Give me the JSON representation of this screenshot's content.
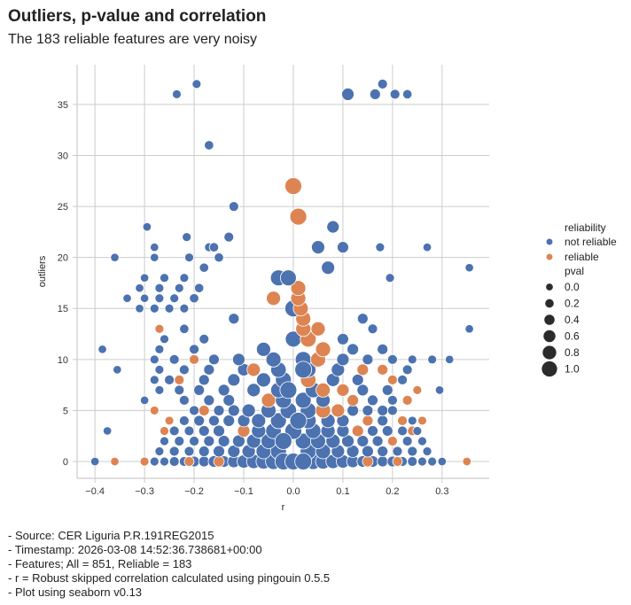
{
  "title": "Outliers, p-value and correlation",
  "subtitle": "The 183 reliable features are very noisy",
  "footer": [
    "- Source: CER Liguria P.R.191REG2015",
    "- Timestamp: 2026-03-08 14:52:36.738681+00:00",
    "- Features; All = 851, Reliable = 183",
    "- r = Robust skipped correlation calculated using pingouin 0.5.5",
    "- Plot using seaborn v0.13"
  ],
  "chart_data": {
    "type": "scatter",
    "xlabel": "r",
    "ylabel": "outliers",
    "xlim": [
      -0.436,
      0.395
    ],
    "ylim": [
      -1.65,
      38.9
    ],
    "xticks": [
      -0.4,
      -0.3,
      -0.2,
      -0.1,
      0.0,
      0.1,
      0.2,
      0.3
    ],
    "xtick_labels": [
      "−0.4",
      "−0.3",
      "−0.2",
      "−0.1",
      "0.0",
      "0.1",
      "0.2",
      "0.3"
    ],
    "yticks": [
      0,
      5,
      10,
      15,
      20,
      25,
      30,
      35
    ],
    "ytick_labels": [
      "0",
      "5",
      "10",
      "15",
      "20",
      "25",
      "30",
      "35"
    ],
    "grid": true,
    "legend": {
      "placement": "right",
      "hue_title": "reliability",
      "hue_entries": [
        {
          "label": "not reliable",
          "color": "#4c72b0"
        },
        {
          "label": "reliable",
          "color": "#dd8452"
        }
      ],
      "size_title": "pval",
      "size_entries": [
        {
          "label": "0.0",
          "value": 0
        },
        {
          "label": "0.2",
          "value": 0.2
        },
        {
          "label": "0.4",
          "value": 0.4
        },
        {
          "label": "0.6",
          "value": 0.6
        },
        {
          "label": "0.8",
          "value": 0.8
        },
        {
          "label": "1.0",
          "value": 1.0
        }
      ]
    },
    "point_fields": [
      "r",
      "outliers",
      "pval",
      "reliable"
    ],
    "points": [
      [
        -0.28,
        0,
        0.1,
        0
      ],
      [
        -0.26,
        0,
        0.1,
        0
      ],
      [
        -0.24,
        0,
        0.2,
        0
      ],
      [
        -0.22,
        0,
        0.2,
        0
      ],
      [
        -0.2,
        0,
        0.3,
        0
      ],
      [
        -0.18,
        0,
        0.3,
        0
      ],
      [
        -0.16,
        0,
        0.4,
        0
      ],
      [
        -0.14,
        0,
        0.4,
        0
      ],
      [
        -0.12,
        0,
        0.5,
        0
      ],
      [
        -0.1,
        0,
        0.6,
        0
      ],
      [
        -0.08,
        0,
        0.7,
        0
      ],
      [
        -0.06,
        0,
        0.8,
        0
      ],
      [
        -0.04,
        0,
        0.9,
        0
      ],
      [
        -0.02,
        0,
        0.95,
        0
      ],
      [
        0.02,
        0,
        0.95,
        0
      ],
      [
        0.04,
        0,
        0.9,
        0
      ],
      [
        0.06,
        0,
        0.8,
        0
      ],
      [
        0.08,
        0,
        0.7,
        0
      ],
      [
        0.1,
        0,
        0.6,
        0
      ],
      [
        0.12,
        0,
        0.5,
        0
      ],
      [
        0.14,
        0,
        0.4,
        0
      ],
      [
        0.16,
        0,
        0.4,
        0
      ],
      [
        0.18,
        0,
        0.3,
        0
      ],
      [
        0.2,
        0,
        0.3,
        0
      ],
      [
        0.22,
        0,
        0.2,
        0
      ],
      [
        0.24,
        0,
        0.2,
        0
      ],
      [
        0.26,
        0,
        0.1,
        0
      ],
      [
        0.28,
        0,
        0.1,
        0
      ],
      [
        0.3,
        0,
        0.05,
        0
      ],
      [
        -0.4,
        0,
        0.05,
        0
      ],
      [
        -0.36,
        0,
        0.05,
        1
      ],
      [
        -0.3,
        0,
        0.1,
        1
      ],
      [
        -0.21,
        0,
        0.2,
        1
      ],
      [
        -0.15,
        0,
        0.3,
        1
      ],
      [
        0.15,
        0,
        0.3,
        1
      ],
      [
        0.21,
        0,
        0.2,
        1
      ],
      [
        0.35,
        0,
        0.05,
        1
      ],
      [
        -0.27,
        1,
        0.1,
        0
      ],
      [
        -0.24,
        1,
        0.2,
        0
      ],
      [
        -0.21,
        1,
        0.2,
        0
      ],
      [
        -0.18,
        1,
        0.3,
        0
      ],
      [
        -0.15,
        1,
        0.4,
        0
      ],
      [
        -0.12,
        1,
        0.5,
        0
      ],
      [
        -0.09,
        1,
        0.6,
        0
      ],
      [
        -0.06,
        1,
        0.8,
        0
      ],
      [
        -0.03,
        1,
        0.9,
        0
      ],
      [
        0.03,
        1,
        0.9,
        0
      ],
      [
        0.06,
        1,
        0.8,
        0
      ],
      [
        0.09,
        1,
        0.6,
        0
      ],
      [
        0.12,
        1,
        0.5,
        0
      ],
      [
        0.15,
        1,
        0.4,
        0
      ],
      [
        0.18,
        1,
        0.3,
        0
      ],
      [
        0.21,
        1,
        0.2,
        0
      ],
      [
        0.24,
        1,
        0.2,
        0
      ],
      [
        0.27,
        1,
        0.1,
        0
      ],
      [
        -0.26,
        2,
        0.1,
        0
      ],
      [
        -0.23,
        2,
        0.2,
        0
      ],
      [
        -0.2,
        2,
        0.2,
        0
      ],
      [
        -0.17,
        2,
        0.3,
        0
      ],
      [
        -0.14,
        2,
        0.4,
        0
      ],
      [
        -0.11,
        2,
        0.5,
        0
      ],
      [
        -0.08,
        2,
        0.7,
        0
      ],
      [
        -0.05,
        2,
        0.8,
        0
      ],
      [
        -0.02,
        2,
        0.9,
        0
      ],
      [
        0.02,
        2,
        0.9,
        0
      ],
      [
        0.05,
        2,
        0.8,
        0
      ],
      [
        0.08,
        2,
        0.7,
        0
      ],
      [
        0.11,
        2,
        0.5,
        0
      ],
      [
        0.14,
        2,
        0.4,
        0
      ],
      [
        0.17,
        2,
        0.3,
        0
      ],
      [
        0.2,
        2,
        0.2,
        1
      ],
      [
        0.23,
        2,
        0.2,
        0
      ],
      [
        0.26,
        2,
        0.1,
        0
      ],
      [
        -0.375,
        3,
        0.05,
        0
      ],
      [
        -0.26,
        3,
        0.1,
        1
      ],
      [
        -0.24,
        3,
        0.2,
        0
      ],
      [
        -0.21,
        3,
        0.2,
        0
      ],
      [
        -0.18,
        3,
        0.3,
        0
      ],
      [
        -0.15,
        3,
        0.4,
        0
      ],
      [
        -0.1,
        3,
        0.5,
        1
      ],
      [
        -0.07,
        3,
        0.7,
        0
      ],
      [
        -0.04,
        3,
        0.85,
        0
      ],
      [
        0.0,
        3,
        1.0,
        0
      ],
      [
        0.04,
        3,
        0.85,
        0
      ],
      [
        0.07,
        3,
        0.7,
        0
      ],
      [
        0.1,
        3,
        0.5,
        0
      ],
      [
        0.13,
        3,
        0.4,
        1
      ],
      [
        0.16,
        3,
        0.3,
        0
      ],
      [
        0.19,
        3,
        0.3,
        0
      ],
      [
        0.22,
        3,
        0.2,
        0
      ],
      [
        0.24,
        3,
        0.2,
        1
      ],
      [
        0.25,
        3,
        0.1,
        0
      ],
      [
        -0.25,
        4,
        0.1,
        1
      ],
      [
        -0.22,
        4,
        0.2,
        0
      ],
      [
        -0.19,
        4,
        0.3,
        0
      ],
      [
        -0.16,
        4,
        0.3,
        0
      ],
      [
        -0.13,
        4,
        0.4,
        0
      ],
      [
        -0.1,
        4,
        0.5,
        0
      ],
      [
        -0.07,
        4,
        0.7,
        0
      ],
      [
        -0.03,
        4,
        0.9,
        0
      ],
      [
        0.03,
        4,
        0.9,
        0
      ],
      [
        0.07,
        4,
        0.7,
        0
      ],
      [
        0.1,
        4,
        0.5,
        0
      ],
      [
        0.15,
        4,
        0.3,
        1
      ],
      [
        0.18,
        4,
        0.3,
        0
      ],
      [
        0.22,
        4,
        0.2,
        1
      ],
      [
        0.24,
        4,
        0.1,
        0
      ],
      [
        0.26,
        4,
        0.1,
        1
      ],
      [
        -0.28,
        5,
        0.1,
        1
      ],
      [
        -0.2,
        5,
        0.2,
        0
      ],
      [
        -0.18,
        5,
        0.3,
        1
      ],
      [
        -0.15,
        5,
        0.3,
        0
      ],
      [
        -0.12,
        5,
        0.4,
        0
      ],
      [
        -0.09,
        5,
        0.6,
        0
      ],
      [
        -0.05,
        5,
        0.8,
        0
      ],
      [
        -0.01,
        5,
        0.95,
        0
      ],
      [
        0.03,
        5,
        0.9,
        0
      ],
      [
        0.06,
        5,
        0.8,
        1
      ],
      [
        0.09,
        5,
        0.6,
        1
      ],
      [
        0.12,
        5,
        0.4,
        0
      ],
      [
        0.15,
        5,
        0.3,
        0
      ],
      [
        0.18,
        5,
        0.3,
        0
      ],
      [
        0.2,
        5,
        0.2,
        0
      ],
      [
        -0.3,
        6,
        0.05,
        0
      ],
      [
        -0.22,
        6,
        0.2,
        0
      ],
      [
        -0.17,
        6,
        0.3,
        0
      ],
      [
        -0.13,
        6,
        0.4,
        0
      ],
      [
        -0.05,
        6,
        0.7,
        1
      ],
      [
        -0.02,
        6,
        0.9,
        0
      ],
      [
        0.02,
        6,
        0.9,
        0
      ],
      [
        0.06,
        6,
        0.7,
        0
      ],
      [
        0.12,
        6,
        0.4,
        1
      ],
      [
        0.16,
        6,
        0.3,
        0
      ],
      [
        0.2,
        6,
        0.2,
        0
      ],
      [
        0.23,
        6,
        0.2,
        1
      ],
      [
        -0.27,
        7,
        0.1,
        0
      ],
      [
        -0.23,
        7,
        0.2,
        0
      ],
      [
        -0.19,
        7,
        0.3,
        0
      ],
      [
        -0.14,
        7,
        0.4,
        0
      ],
      [
        -0.08,
        7,
        0.6,
        0
      ],
      [
        -0.03,
        7,
        0.85,
        0
      ],
      [
        0.04,
        7,
        0.85,
        0
      ],
      [
        0.06,
        7,
        0.7,
        1
      ],
      [
        0.1,
        7,
        0.5,
        1
      ],
      [
        0.14,
        7,
        0.4,
        0
      ],
      [
        0.19,
        7,
        0.3,
        0
      ],
      [
        0.25,
        7,
        0.1,
        1
      ],
      [
        0.295,
        7,
        0.05,
        0
      ],
      [
        -0.28,
        8,
        0.1,
        0
      ],
      [
        -0.25,
        8,
        0.2,
        0
      ],
      [
        -0.23,
        8,
        0.2,
        1
      ],
      [
        -0.18,
        8,
        0.3,
        0
      ],
      [
        -0.12,
        8,
        0.5,
        0
      ],
      [
        -0.06,
        8,
        0.7,
        0
      ],
      [
        -0.02,
        8,
        0.9,
        0
      ],
      [
        0.03,
        8,
        0.85,
        1
      ],
      [
        0.08,
        8,
        0.6,
        0
      ],
      [
        0.13,
        8,
        0.4,
        0
      ],
      [
        0.2,
        8,
        0.2,
        1
      ],
      [
        0.22,
        8,
        0.2,
        0
      ],
      [
        -0.355,
        9,
        0.05,
        0
      ],
      [
        -0.27,
        9,
        0.1,
        0
      ],
      [
        -0.22,
        9,
        0.2,
        0
      ],
      [
        -0.17,
        9,
        0.3,
        0
      ],
      [
        -0.1,
        9,
        0.5,
        0
      ],
      [
        -0.08,
        9,
        0.6,
        1
      ],
      [
        -0.03,
        9,
        0.85,
        0
      ],
      [
        0.03,
        9,
        0.85,
        0
      ],
      [
        0.09,
        9,
        0.6,
        0
      ],
      [
        0.14,
        9,
        0.4,
        1
      ],
      [
        0.18,
        9,
        0.3,
        1
      ],
      [
        0.23,
        9,
        0.2,
        0
      ],
      [
        -0.28,
        10,
        0.1,
        0
      ],
      [
        -0.24,
        10,
        0.2,
        0
      ],
      [
        -0.2,
        10,
        0.2,
        1
      ],
      [
        -0.16,
        10,
        0.3,
        0
      ],
      [
        -0.11,
        10,
        0.5,
        0
      ],
      [
        -0.04,
        10,
        0.8,
        0
      ],
      [
        0.02,
        10,
        0.9,
        0
      ],
      [
        0.05,
        10,
        0.8,
        1
      ],
      [
        0.1,
        10,
        0.5,
        0
      ],
      [
        0.15,
        10,
        0.3,
        0
      ],
      [
        0.2,
        10,
        0.2,
        0
      ],
      [
        0.24,
        10,
        0.1,
        0
      ],
      [
        0.28,
        10,
        0.1,
        0
      ],
      [
        0.315,
        10,
        0.05,
        0
      ],
      [
        -0.385,
        11,
        0.05,
        0
      ],
      [
        -0.27,
        11,
        0.1,
        0
      ],
      [
        -0.2,
        11,
        0.2,
        0
      ],
      [
        -0.06,
        11,
        0.7,
        0
      ],
      [
        0.06,
        11,
        0.8,
        1
      ],
      [
        0.12,
        11,
        0.4,
        0
      ],
      [
        0.18,
        11,
        0.3,
        0
      ],
      [
        -0.26,
        12,
        0.1,
        0
      ],
      [
        -0.18,
        12,
        0.2,
        0
      ],
      [
        0.0,
        12,
        0.9,
        0
      ],
      [
        0.03,
        12,
        0.9,
        1
      ],
      [
        0.1,
        12,
        0.4,
        0
      ],
      [
        0.355,
        13,
        0.05,
        0
      ],
      [
        0.02,
        13,
        0.8,
        1
      ],
      [
        0.05,
        13,
        0.7,
        1
      ],
      [
        -0.27,
        13,
        0.1,
        1
      ],
      [
        -0.22,
        13,
        0.15,
        0
      ],
      [
        -0.12,
        14,
        0.3,
        0
      ],
      [
        0.02,
        14,
        0.8,
        1
      ],
      [
        0.14,
        14,
        0.3,
        0
      ],
      [
        0.16,
        13,
        0.2,
        0
      ],
      [
        -0.31,
        15,
        0.05,
        0
      ],
      [
        -0.28,
        15,
        0.1,
        0
      ],
      [
        -0.25,
        15,
        0.1,
        0
      ],
      [
        -0.22,
        15,
        0.1,
        0
      ],
      [
        0.0,
        15,
        1.0,
        0
      ],
      [
        0.015,
        15,
        0.8,
        1
      ],
      [
        -0.335,
        16,
        0.05,
        0
      ],
      [
        -0.3,
        16,
        0.05,
        0
      ],
      [
        -0.27,
        16,
        0.1,
        0
      ],
      [
        -0.24,
        16,
        0.1,
        0
      ],
      [
        -0.2,
        16,
        0.15,
        0
      ],
      [
        -0.04,
        16,
        0.7,
        1
      ],
      [
        0.01,
        16,
        0.8,
        1
      ],
      [
        -0.31,
        17,
        0.05,
        0
      ],
      [
        -0.27,
        17,
        0.1,
        0
      ],
      [
        -0.23,
        17,
        0.1,
        0
      ],
      [
        -0.19,
        17,
        0.15,
        0
      ],
      [
        0.01,
        17,
        0.8,
        1
      ],
      [
        -0.3,
        18,
        0.05,
        0
      ],
      [
        -0.26,
        18,
        0.1,
        0
      ],
      [
        -0.22,
        18,
        0.1,
        0
      ],
      [
        -0.03,
        18,
        0.9,
        0
      ],
      [
        -0.01,
        18,
        0.9,
        0
      ],
      [
        0.195,
        18,
        0.1,
        0
      ],
      [
        -0.18,
        19,
        0.15,
        0
      ],
      [
        0.07,
        19,
        0.6,
        0
      ],
      [
        0.355,
        19,
        0.05,
        0
      ],
      [
        -0.36,
        20,
        0.05,
        0
      ],
      [
        -0.28,
        20,
        0.05,
        0
      ],
      [
        -0.21,
        20,
        0.1,
        0
      ],
      [
        -0.15,
        20,
        0.15,
        0
      ],
      [
        -0.28,
        21,
        0.05,
        0
      ],
      [
        -0.17,
        21,
        0.1,
        0
      ],
      [
        -0.16,
        21,
        0.15,
        0
      ],
      [
        0.05,
        21,
        0.6,
        0
      ],
      [
        0.1,
        21,
        0.4,
        0
      ],
      [
        0.175,
        21,
        0.1,
        0
      ],
      [
        0.27,
        21,
        0.05,
        0
      ],
      [
        -0.215,
        22,
        0.1,
        0
      ],
      [
        -0.13,
        22,
        0.2,
        0
      ],
      [
        -0.295,
        23,
        0.05,
        0
      ],
      [
        0.08,
        23,
        0.5,
        1
      ],
      [
        0.08,
        23,
        0.5,
        0
      ],
      [
        0.01,
        24,
        1.0,
        1
      ],
      [
        -0.12,
        25,
        0.2,
        0
      ],
      [
        0.0,
        27,
        1.0,
        1
      ],
      [
        -0.17,
        31,
        0.15,
        0
      ],
      [
        -0.235,
        36,
        0.1,
        0
      ],
      [
        0.11,
        36,
        0.5,
        0
      ],
      [
        0.165,
        36,
        0.3,
        0
      ],
      [
        0.205,
        36,
        0.2,
        0
      ],
      [
        0.23,
        36,
        0.15,
        0
      ],
      [
        -0.195,
        37,
        0.1,
        0
      ],
      [
        0.18,
        37,
        0.2,
        0
      ],
      [
        -0.02,
        0,
        1.0,
        0
      ],
      [
        0.0,
        0,
        1.0,
        0
      ],
      [
        0.02,
        0,
        1.0,
        0
      ],
      [
        -0.02,
        2,
        1.0,
        0
      ],
      [
        0.01,
        4,
        1.0,
        0
      ],
      [
        -0.01,
        7,
        1.0,
        0
      ],
      [
        0.02,
        9,
        1.0,
        0
      ]
    ]
  }
}
